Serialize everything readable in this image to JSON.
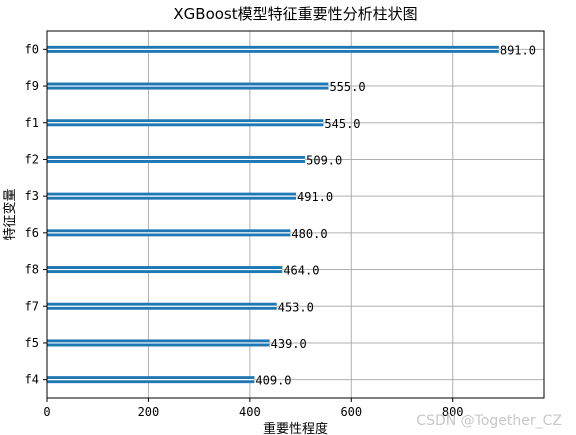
{
  "chart_data": {
    "type": "bar",
    "orientation": "horizontal",
    "title": "XGBoost模型特征重要性分析柱状图",
    "xlabel": "重要性程度",
    "ylabel": "特征变量",
    "categories": [
      "f0",
      "f9",
      "f1",
      "f2",
      "f3",
      "f6",
      "f8",
      "f7",
      "f5",
      "f4"
    ],
    "values": [
      891.0,
      555.0,
      545.0,
      509.0,
      491.0,
      480.0,
      464.0,
      453.0,
      439.0,
      409.0
    ],
    "data_labels": [
      "891.0",
      "555.0",
      "545.0",
      "509.0",
      "491.0",
      "480.0",
      "464.0",
      "453.0",
      "439.0",
      "409.0"
    ],
    "xlim": [
      0,
      980
    ],
    "xticks": [
      0,
      200,
      400,
      600,
      800
    ],
    "grid": true,
    "bar_color": "#1f77b4"
  },
  "watermark": "CSDN @Together_CZ"
}
